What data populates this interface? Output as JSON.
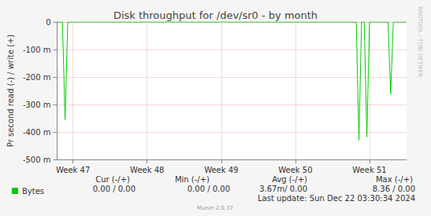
{
  "chart_data": {
    "type": "line",
    "title": "Disk throughput for /dev/sr0 - by month",
    "y_label": "Pr second read (-) / write (+)",
    "categories": [
      null,
      null,
      null,
      null,
      null,
      null,
      "Week 47",
      null,
      null,
      null,
      null,
      null,
      null,
      null,
      null,
      null,
      null,
      null,
      null,
      null,
      null,
      null,
      null,
      null,
      null,
      null,
      null,
      null,
      null,
      null,
      null,
      null,
      null,
      null,
      "Week 48",
      null,
      null,
      null,
      null,
      null,
      null,
      null,
      null,
      null,
      null,
      null,
      null,
      null,
      null,
      null,
      null,
      null,
      null,
      null,
      null,
      null,
      null,
      null,
      null,
      null,
      null,
      null,
      "Week 49",
      null,
      null,
      null,
      null,
      null,
      null,
      null,
      null,
      null,
      null,
      null,
      null,
      null,
      null,
      null,
      null,
      null,
      null,
      null,
      null,
      null,
      null,
      null,
      null,
      null,
      null,
      null,
      "Week 50",
      null,
      null,
      null,
      null,
      null,
      null,
      null,
      null,
      null,
      null,
      null,
      null,
      null,
      null,
      null,
      null,
      null,
      null,
      null,
      null,
      null,
      null,
      null,
      null,
      null,
      null,
      null,
      "Week 51",
      null,
      null,
      null,
      null,
      null,
      null,
      null,
      null,
      null,
      null,
      null,
      null,
      null,
      null
    ],
    "series": [
      {
        "name": "Bytes",
        "color": "#00cc00",
        "values": [
          0,
          0,
          0,
          -0.355,
          0,
          0,
          0,
          0,
          0,
          0,
          0,
          0,
          0,
          0,
          0,
          0,
          0,
          0,
          0,
          0,
          0,
          0,
          0,
          0,
          0,
          0,
          0,
          0,
          0,
          0,
          0,
          0,
          0,
          0,
          0,
          0,
          0,
          0,
          0,
          0,
          0,
          0,
          0,
          0,
          0,
          0,
          0,
          0,
          0,
          0,
          0,
          0,
          0,
          0,
          0,
          0,
          0,
          0,
          0,
          0,
          0,
          0,
          0,
          0,
          0,
          0,
          0,
          0,
          0,
          0,
          0,
          0,
          0,
          0,
          0,
          0,
          0,
          0,
          0,
          0,
          0,
          0,
          0,
          0,
          0,
          0,
          0,
          0,
          0,
          0,
          0,
          0,
          0,
          0,
          0,
          0,
          0,
          0,
          0,
          0,
          0,
          0,
          0,
          0,
          0,
          0,
          0,
          0,
          0,
          0,
          0,
          0,
          0,
          0,
          -0.43,
          0,
          0,
          -0.418,
          0,
          0,
          0,
          0,
          0,
          0,
          0,
          0,
          -0.262,
          0,
          0,
          0,
          0,
          0,
          0
        ]
      }
    ],
    "ylim": [
      -0.5,
      0
    ],
    "yticks": [
      {
        "value": -0.5,
        "label": "-500 m"
      },
      {
        "value": -0.4,
        "label": "-400 m"
      },
      {
        "value": -0.3,
        "label": "-300 m"
      },
      {
        "value": -0.2,
        "label": "-200 m"
      },
      {
        "value": -0.1,
        "label": "-100 m"
      },
      0
    ],
    "grid": true,
    "legend": "bottom-left",
    "stats": {
      "columns": [
        "Cur (-/+)",
        "Min (-/+)",
        "Avg (-/+)",
        "Max (-/+)"
      ],
      "values": [
        "0.00 / 0.00",
        "0.00 / 0.00",
        "3.67m/ 0.00",
        "8.36 / 0.00"
      ]
    },
    "footer": "Last update: Sun Dec 22 03:30:34 2024",
    "credit": "Munin 2.0.37",
    "side_text": "RRDTOOL / TOBI OETIKER"
  }
}
